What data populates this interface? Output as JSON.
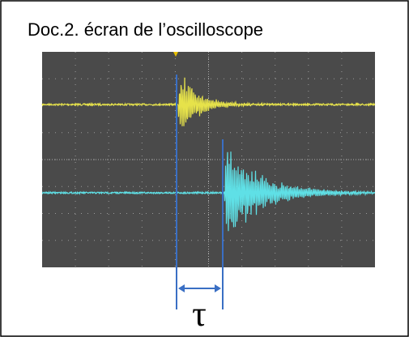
{
  "title": "Doc.2. écran de l’oscilloscope",
  "annotation": "τ"
}
